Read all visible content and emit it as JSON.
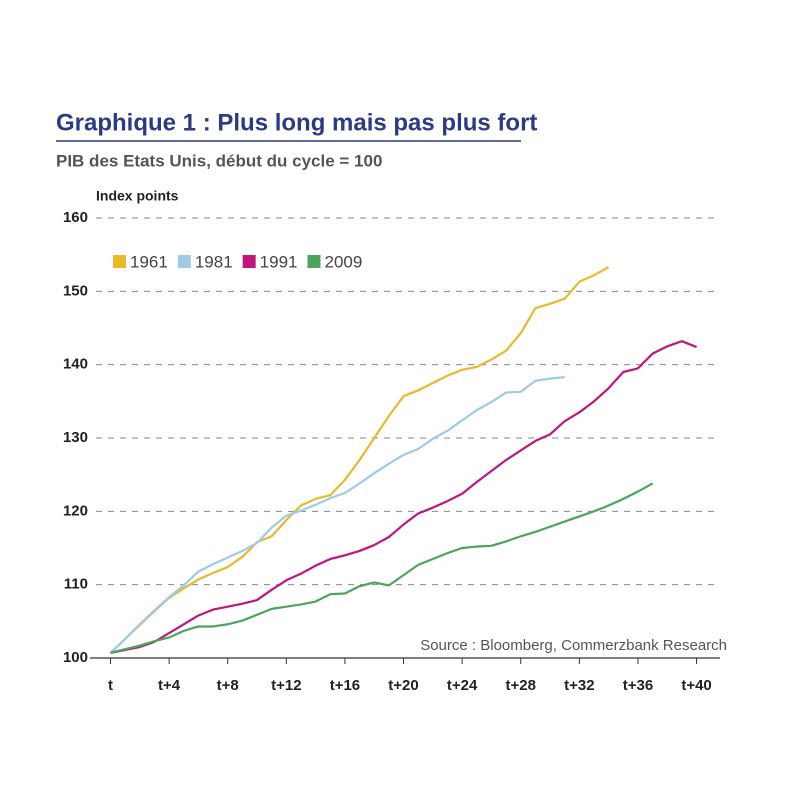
{
  "chart_data": {
    "type": "line",
    "title": "Graphique 1 : Plus long mais pas plus fort",
    "subtitle": "PIB des Etats Unis, début du cycle = 100",
    "ylabel": "Index points",
    "source": "Source : Bloomberg, Commerzbank Research",
    "x": [
      0,
      1,
      2,
      3,
      4,
      5,
      6,
      7,
      8,
      9,
      10,
      11,
      12,
      13,
      14,
      15,
      16,
      17,
      18,
      19,
      20,
      21,
      22,
      23,
      24,
      25,
      26,
      27,
      28,
      29,
      30,
      31,
      32,
      33,
      34,
      35,
      36,
      37,
      38,
      39,
      40
    ],
    "xlim": [
      -1.4,
      41.6
    ],
    "xticks": [
      {
        "value": 0,
        "label": "t"
      },
      {
        "value": 4,
        "label": "t+4"
      },
      {
        "value": 8,
        "label": "t+8"
      },
      {
        "value": 12,
        "label": "t+12"
      },
      {
        "value": 16,
        "label": "t+16"
      },
      {
        "value": 20,
        "label": "t+20"
      },
      {
        "value": 24,
        "label": "t+24"
      },
      {
        "value": 28,
        "label": "t+28"
      },
      {
        "value": 32,
        "label": "t+32"
      },
      {
        "value": 36,
        "label": "t+36"
      },
      {
        "value": 40,
        "label": "t+40"
      }
    ],
    "ylim": [
      100,
      160
    ],
    "yticks": [
      100,
      110,
      120,
      130,
      140,
      150,
      160
    ],
    "grid": true,
    "legend": "top-left",
    "series": [
      {
        "name": "1961",
        "color": "#e8b92a",
        "values": [
          100.7,
          102.6,
          104.5,
          106.4,
          108.2,
          109.5,
          110.7,
          111.6,
          112.4,
          113.8,
          115.8,
          116.6,
          118.8,
          120.8,
          121.7,
          122.2,
          124.3,
          127,
          130,
          133,
          135.7,
          136.5,
          137.5,
          138.5,
          139.3,
          139.7,
          140.7,
          141.9,
          144.3,
          147.7,
          148.3,
          149,
          151.3,
          152.2,
          153.3,
          null,
          null,
          null,
          null,
          null,
          null
        ]
      },
      {
        "name": "1981",
        "color": "#9dcbe6",
        "values": [
          100.7,
          102.6,
          104.6,
          106.5,
          108.3,
          109.9,
          111.8,
          112.8,
          113.7,
          114.6,
          115.7,
          117.8,
          119.4,
          120.1,
          120.9,
          121.8,
          122.5,
          123.8,
          125.2,
          126.5,
          127.7,
          128.5,
          129.9,
          131,
          132.4,
          133.8,
          134.9,
          136.2,
          136.3,
          137.8,
          138.1,
          138.3,
          null,
          null,
          null,
          null,
          null,
          null,
          null,
          null,
          null
        ]
      },
      {
        "name": "1991",
        "color": "#c0147f",
        "values": [
          100.7,
          101.1,
          101.5,
          102.2,
          103.4,
          104.6,
          105.8,
          106.6,
          107,
          107.4,
          107.9,
          109.3,
          110.6,
          111.5,
          112.6,
          113.5,
          114,
          114.6,
          115.4,
          116.5,
          118.2,
          119.7,
          120.5,
          121.4,
          122.4,
          124,
          125.5,
          127,
          128.3,
          129.6,
          130.5,
          132.3,
          133.5,
          135,
          136.8,
          139,
          139.5,
          141.5,
          142.5,
          143.2,
          142.4
        ]
      },
      {
        "name": "2009",
        "color": "#4aa55a",
        "values": [
          100.7,
          101.2,
          101.7,
          102.3,
          102.8,
          103.7,
          104.3,
          104.3,
          104.6,
          105.1,
          105.9,
          106.7,
          107,
          107.3,
          107.7,
          108.7,
          108.8,
          109.8,
          110.3,
          109.9,
          111.3,
          112.7,
          113.5,
          114.3,
          115,
          115.2,
          115.3,
          115.9,
          116.6,
          117.2,
          117.9,
          118.6,
          119.3,
          120,
          120.8,
          121.7,
          122.7,
          123.8,
          null,
          null,
          null
        ]
      }
    ]
  }
}
